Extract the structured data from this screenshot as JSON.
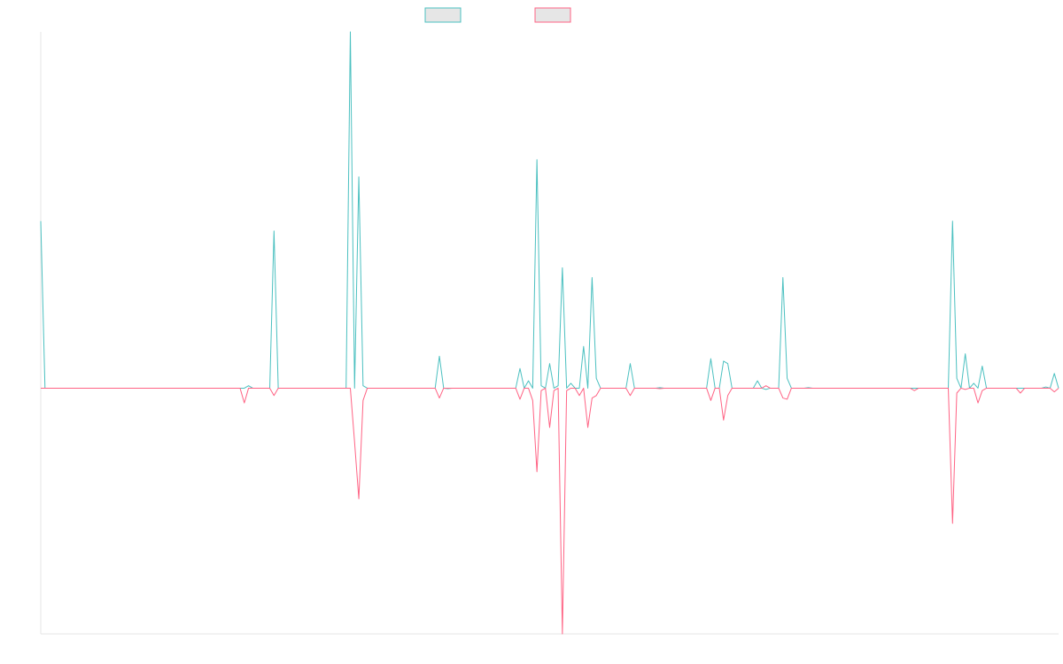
{
  "chart_data": {
    "type": "line",
    "title": "",
    "xlabel": "",
    "ylabel": "",
    "grid": false,
    "legend_position": "top-center",
    "x_count": 240,
    "ylim": [
      -1,
      1.45
    ],
    "series": [
      {
        "color": "#4bc0c0",
        "legend_fill": "#e6e6e6",
        "points": [
          [
            0,
            0.68
          ],
          [
            1,
            0
          ],
          [
            48,
            0
          ],
          [
            49,
            0.01
          ],
          [
            50,
            0
          ],
          [
            54,
            0
          ],
          [
            55,
            0.64
          ],
          [
            56,
            0
          ],
          [
            72,
            0
          ],
          [
            73,
            1.45
          ],
          [
            74,
            0
          ],
          [
            75,
            0.86
          ],
          [
            76,
            0.01
          ],
          [
            77,
            0
          ],
          [
            93,
            0
          ],
          [
            94,
            0.13
          ],
          [
            95,
            0
          ],
          [
            96,
            -0.002
          ],
          [
            97,
            0
          ],
          [
            103,
            0
          ],
          [
            104,
            0
          ],
          [
            105,
            0
          ],
          [
            106,
            0
          ],
          [
            107,
            0
          ],
          [
            112,
            0
          ],
          [
            113,
            0.08
          ],
          [
            114,
            0
          ],
          [
            115,
            0.03
          ],
          [
            116,
            0
          ],
          [
            117,
            0.93
          ],
          [
            118,
            0.01
          ],
          [
            119,
            0
          ],
          [
            120,
            0.1
          ],
          [
            121,
            0
          ],
          [
            122,
            0.01
          ],
          [
            123,
            0.49
          ],
          [
            124,
            0
          ],
          [
            125,
            0.02
          ],
          [
            126,
            0
          ],
          [
            127,
            0
          ],
          [
            128,
            0.17
          ],
          [
            129,
            0
          ],
          [
            130,
            0.45
          ],
          [
            131,
            0.04
          ],
          [
            132,
            0
          ],
          [
            138,
            0
          ],
          [
            139,
            0.1
          ],
          [
            140,
            0
          ],
          [
            145,
            0
          ],
          [
            146,
            0.002
          ],
          [
            147,
            0
          ],
          [
            148,
            0
          ],
          [
            149,
            0
          ],
          [
            150,
            0
          ],
          [
            157,
            0
          ],
          [
            158,
            0.12
          ],
          [
            159,
            0
          ],
          [
            160,
            0
          ],
          [
            161,
            0.11
          ],
          [
            162,
            0.1
          ],
          [
            163,
            0
          ],
          [
            168,
            0
          ],
          [
            169,
            0.03
          ],
          [
            170,
            0
          ],
          [
            171,
            -0.005
          ],
          [
            172,
            0
          ],
          [
            174,
            0
          ],
          [
            175,
            0.45
          ],
          [
            176,
            0.04
          ],
          [
            177,
            0
          ],
          [
            180,
            0
          ],
          [
            181,
            0.002
          ],
          [
            182,
            0
          ],
          [
            205,
            0
          ],
          [
            206,
            0
          ],
          [
            207,
            0
          ],
          [
            214,
            0
          ],
          [
            215,
            0.68
          ],
          [
            216,
            0.04
          ],
          [
            217,
            0
          ],
          [
            218,
            0.14
          ],
          [
            219,
            0
          ],
          [
            220,
            0.02
          ],
          [
            221,
            0
          ],
          [
            222,
            0.09
          ],
          [
            223,
            0
          ],
          [
            230,
            0
          ],
          [
            231,
            0
          ],
          [
            232,
            0
          ],
          [
            236,
            0
          ],
          [
            237,
            0.005
          ],
          [
            238,
            0
          ],
          [
            239,
            0.06
          ],
          [
            240,
            0
          ]
        ]
      },
      {
        "color": "#ff6384",
        "legend_fill": "#e6e6e6",
        "points": [
          [
            0,
            0
          ],
          [
            47,
            0
          ],
          [
            48,
            -0.06
          ],
          [
            49,
            0
          ],
          [
            50,
            0
          ],
          [
            54,
            0
          ],
          [
            55,
            -0.03
          ],
          [
            56,
            0
          ],
          [
            72,
            0
          ],
          [
            73,
            0
          ],
          [
            74,
            -0.22
          ],
          [
            75,
            -0.45
          ],
          [
            76,
            -0.05
          ],
          [
            77,
            0
          ],
          [
            93,
            0
          ],
          [
            94,
            -0.04
          ],
          [
            95,
            0
          ],
          [
            96,
            0
          ],
          [
            103,
            0
          ],
          [
            104,
            0
          ],
          [
            105,
            0
          ],
          [
            106,
            0
          ],
          [
            107,
            0
          ],
          [
            112,
            0
          ],
          [
            113,
            -0.045
          ],
          [
            114,
            0
          ],
          [
            115,
            0
          ],
          [
            116,
            -0.05
          ],
          [
            117,
            -0.34
          ],
          [
            118,
            -0.01
          ],
          [
            119,
            0
          ],
          [
            120,
            -0.16
          ],
          [
            121,
            -0.01
          ],
          [
            122,
            0
          ],
          [
            123,
            -1
          ],
          [
            124,
            -0.01
          ],
          [
            125,
            0
          ],
          [
            126,
            0
          ],
          [
            127,
            -0.03
          ],
          [
            128,
            0
          ],
          [
            129,
            -0.16
          ],
          [
            130,
            -0.04
          ],
          [
            131,
            -0.03
          ],
          [
            132,
            0
          ],
          [
            138,
            0
          ],
          [
            139,
            -0.03
          ],
          [
            140,
            0
          ],
          [
            145,
            0
          ],
          [
            146,
            -0.002
          ],
          [
            147,
            0
          ],
          [
            148,
            0
          ],
          [
            149,
            0
          ],
          [
            150,
            0
          ],
          [
            157,
            0
          ],
          [
            158,
            -0.05
          ],
          [
            159,
            0
          ],
          [
            160,
            0
          ],
          [
            161,
            -0.13
          ],
          [
            162,
            -0.03
          ],
          [
            163,
            0
          ],
          [
            168,
            0
          ],
          [
            169,
            0
          ],
          [
            170,
            0
          ],
          [
            171,
            0.01
          ],
          [
            172,
            0
          ],
          [
            174,
            0
          ],
          [
            175,
            -0.04
          ],
          [
            176,
            -0.045
          ],
          [
            177,
            0
          ],
          [
            180,
            0
          ],
          [
            181,
            0
          ],
          [
            182,
            0
          ],
          [
            205,
            0
          ],
          [
            206,
            -0.01
          ],
          [
            207,
            0
          ],
          [
            214,
            0
          ],
          [
            215,
            -0.55
          ],
          [
            216,
            -0.02
          ],
          [
            217,
            0
          ],
          [
            218,
            -0.005
          ],
          [
            219,
            0
          ],
          [
            220,
            0
          ],
          [
            221,
            -0.06
          ],
          [
            222,
            -0.01
          ],
          [
            223,
            0
          ],
          [
            230,
            0
          ],
          [
            231,
            -0.02
          ],
          [
            232,
            0
          ],
          [
            236,
            0
          ],
          [
            237,
            0
          ],
          [
            238,
            0
          ],
          [
            239,
            -0.015
          ],
          [
            240,
            0
          ]
        ]
      }
    ]
  }
}
